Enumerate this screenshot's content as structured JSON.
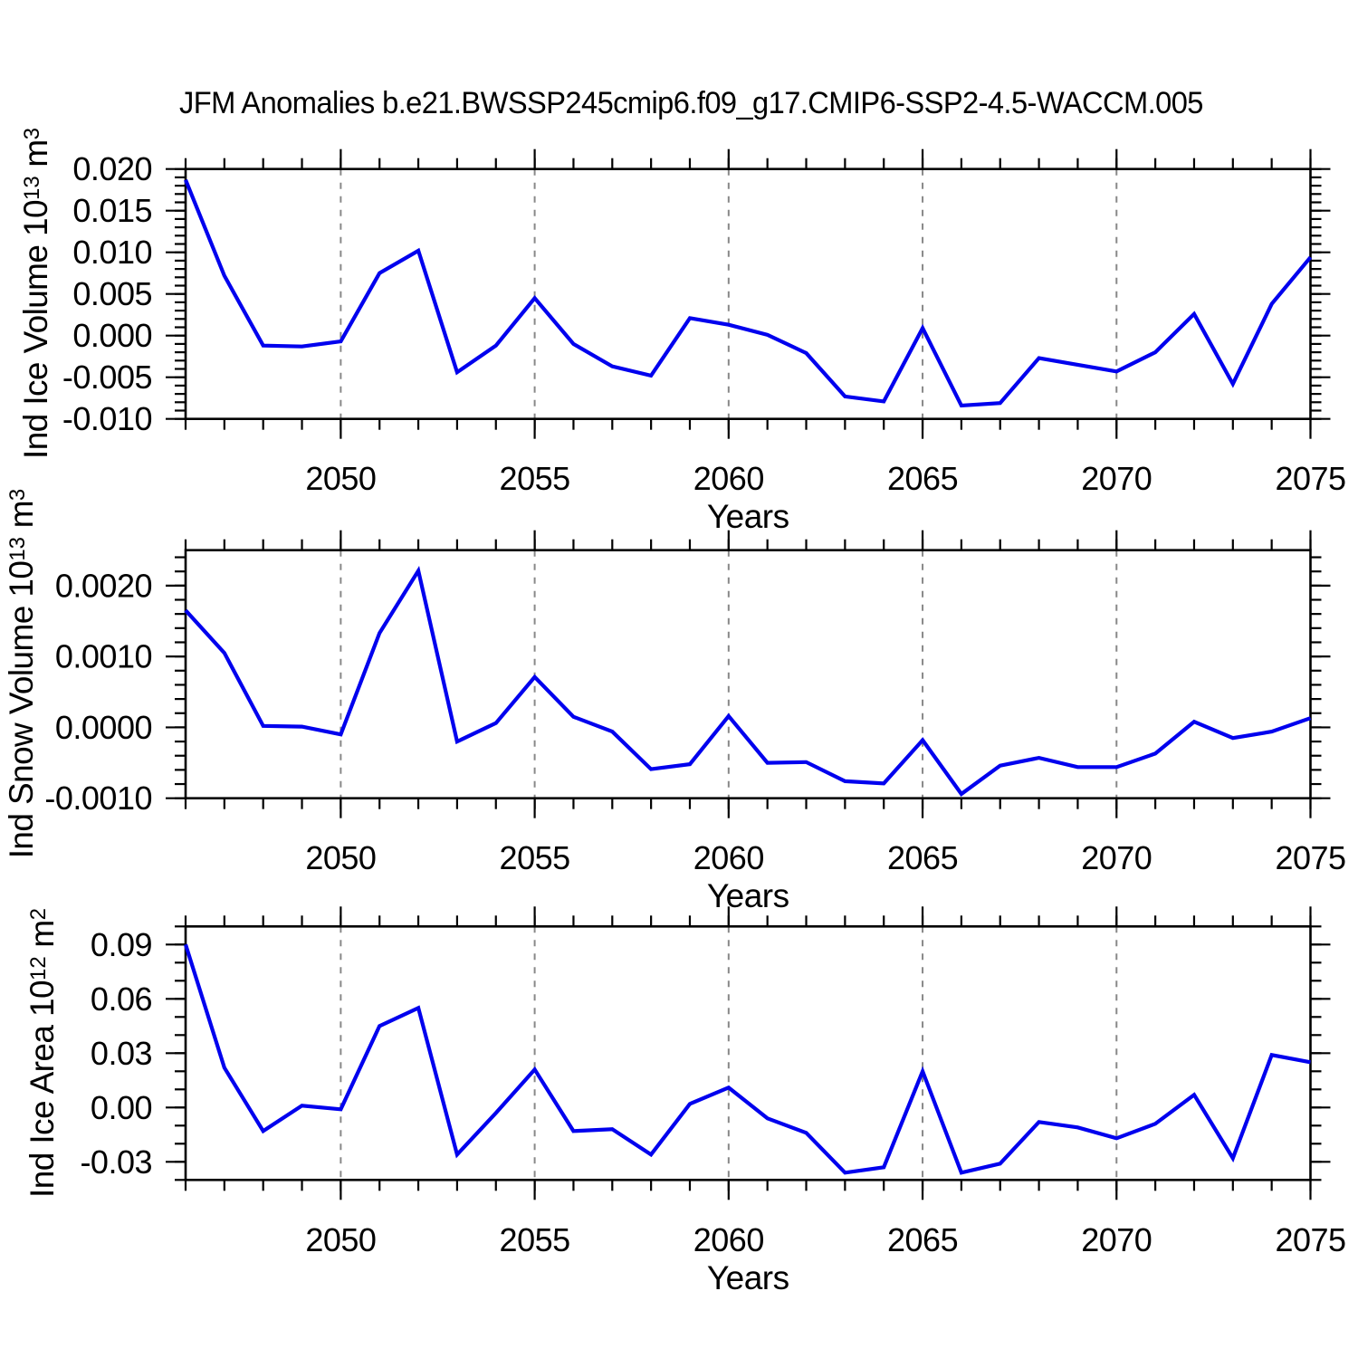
{
  "page": {
    "background": "#ffffff"
  },
  "header": {
    "title": "JFM Anomalies b.e21.BWSSP245cmip6.f09_g17.CMIP6-SSP2-4.5-WACCM.005"
  },
  "style": {
    "line_color": "#0000EE",
    "grid_color": "#888888",
    "frame_color": "#000000"
  },
  "chart_data": [
    {
      "type": "line",
      "name": "ind-ice-volume",
      "ylabel_main": "Ind Ice Volume 10",
      "ylabel_exponent": "13",
      "ylabel_unit": " m",
      "ylabel_unit_exponent": "3",
      "xlabel": "Years",
      "xlim": [
        2046,
        2075
      ],
      "ylim": [
        -0.01,
        0.02
      ],
      "xtick_values": [
        2050,
        2055,
        2060,
        2065,
        2070,
        2075
      ],
      "xtick_labels": [
        "2050",
        "2055",
        "2060",
        "2065",
        "2070",
        "2075"
      ],
      "x_minor_step": 1,
      "grid_x": [
        2050,
        2055,
        2060,
        2065,
        2070
      ],
      "grid": "vertical-dashed",
      "ytick_values": [
        0.02,
        0.015,
        0.01,
        0.005,
        0.0,
        -0.005,
        -0.01
      ],
      "ytick_labels": [
        "0.020",
        "0.015",
        "0.010",
        "0.005",
        "0.000",
        "-0.005",
        "-0.010"
      ],
      "y_minor_step": 0.001,
      "x": [
        2046,
        2047,
        2048,
        2049,
        2050,
        2051,
        2052,
        2053,
        2054,
        2055,
        2056,
        2057,
        2058,
        2059,
        2060,
        2061,
        2062,
        2063,
        2064,
        2065,
        2066,
        2067,
        2068,
        2069,
        2070,
        2071,
        2072,
        2073,
        2074,
        2075
      ],
      "values": [
        0.0187,
        0.0072,
        -0.0012,
        -0.0013,
        -0.0007,
        0.0075,
        0.0102,
        -0.0044,
        -0.0012,
        0.0045,
        -0.001,
        -0.0037,
        -0.0048,
        0.0021,
        0.0013,
        0.0001,
        -0.0021,
        -0.0073,
        -0.0079,
        0.0009,
        -0.0084,
        -0.0081,
        -0.0027,
        -0.0035,
        -0.0043,
        -0.002,
        0.0026,
        -0.0058,
        0.0038,
        0.0094
      ]
    },
    {
      "type": "line",
      "name": "ind-snow-volume",
      "ylabel_main": "Ind Snow Volume 10",
      "ylabel_exponent": "13",
      "ylabel_unit": " m",
      "ylabel_unit_exponent": "3",
      "xlabel": "Years",
      "xlim": [
        2046,
        2075
      ],
      "ylim": [
        -0.001,
        0.0025
      ],
      "xtick_values": [
        2050,
        2055,
        2060,
        2065,
        2070,
        2075
      ],
      "xtick_labels": [
        "2050",
        "2055",
        "2060",
        "2065",
        "2070",
        "2075"
      ],
      "x_minor_step": 1,
      "grid_x": [
        2050,
        2055,
        2060,
        2065,
        2070
      ],
      "grid": "vertical-dashed",
      "ytick_values": [
        0.002,
        0.001,
        0.0,
        -0.001
      ],
      "ytick_labels": [
        "0.0020",
        "0.0010",
        "0.0000",
        "-0.0010"
      ],
      "y_minor_step": 0.0002,
      "x": [
        2046,
        2047,
        2048,
        2049,
        2050,
        2051,
        2052,
        2053,
        2054,
        2055,
        2056,
        2057,
        2058,
        2059,
        2060,
        2061,
        2062,
        2063,
        2064,
        2065,
        2066,
        2067,
        2068,
        2069,
        2070,
        2071,
        2072,
        2073,
        2074,
        2075
      ],
      "values": [
        0.00165,
        0.00105,
        2e-05,
        1e-05,
        -0.0001,
        0.00133,
        0.00221,
        -0.0002,
        6e-05,
        0.00071,
        0.00015,
        -6e-05,
        -0.00059,
        -0.00052,
        0.00016,
        -0.0005,
        -0.00049,
        -0.00076,
        -0.00079,
        -0.00018,
        -0.00094,
        -0.00054,
        -0.00043,
        -0.00056,
        -0.00056,
        -0.00037,
        8e-05,
        -0.00015,
        -6e-05,
        0.00013
      ]
    },
    {
      "type": "line",
      "name": "ind-ice-area",
      "ylabel_main": "Ind Ice Area 10",
      "ylabel_exponent": "12",
      "ylabel_unit": " m",
      "ylabel_unit_exponent": "2",
      "xlabel": "Years",
      "xlim": [
        2046,
        2075
      ],
      "ylim": [
        -0.04,
        0.1
      ],
      "xtick_values": [
        2050,
        2055,
        2060,
        2065,
        2070,
        2075
      ],
      "xtick_labels": [
        "2050",
        "2055",
        "2060",
        "2065",
        "2070",
        "2075"
      ],
      "x_minor_step": 1,
      "grid_x": [
        2050,
        2055,
        2060,
        2065,
        2070
      ],
      "grid": "vertical-dashed",
      "ytick_values": [
        0.09,
        0.06,
        0.03,
        0.0,
        -0.03
      ],
      "ytick_labels": [
        "0.09",
        "0.06",
        "0.03",
        "0.00",
        "-0.03"
      ],
      "y_minor_step": 0.01,
      "x": [
        2046,
        2047,
        2048,
        2049,
        2050,
        2051,
        2052,
        2053,
        2054,
        2055,
        2056,
        2057,
        2058,
        2059,
        2060,
        2061,
        2062,
        2063,
        2064,
        2065,
        2066,
        2067,
        2068,
        2069,
        2070,
        2071,
        2072,
        2073,
        2074,
        2075
      ],
      "values": [
        0.09,
        0.022,
        -0.013,
        0.001,
        -0.001,
        0.045,
        0.055,
        -0.026,
        -0.003,
        0.021,
        -0.013,
        -0.012,
        -0.026,
        0.002,
        0.011,
        -0.006,
        -0.014,
        -0.036,
        -0.033,
        0.02,
        -0.036,
        -0.031,
        -0.008,
        -0.011,
        -0.017,
        -0.009,
        0.007,
        -0.028,
        0.029,
        0.025
      ]
    }
  ]
}
